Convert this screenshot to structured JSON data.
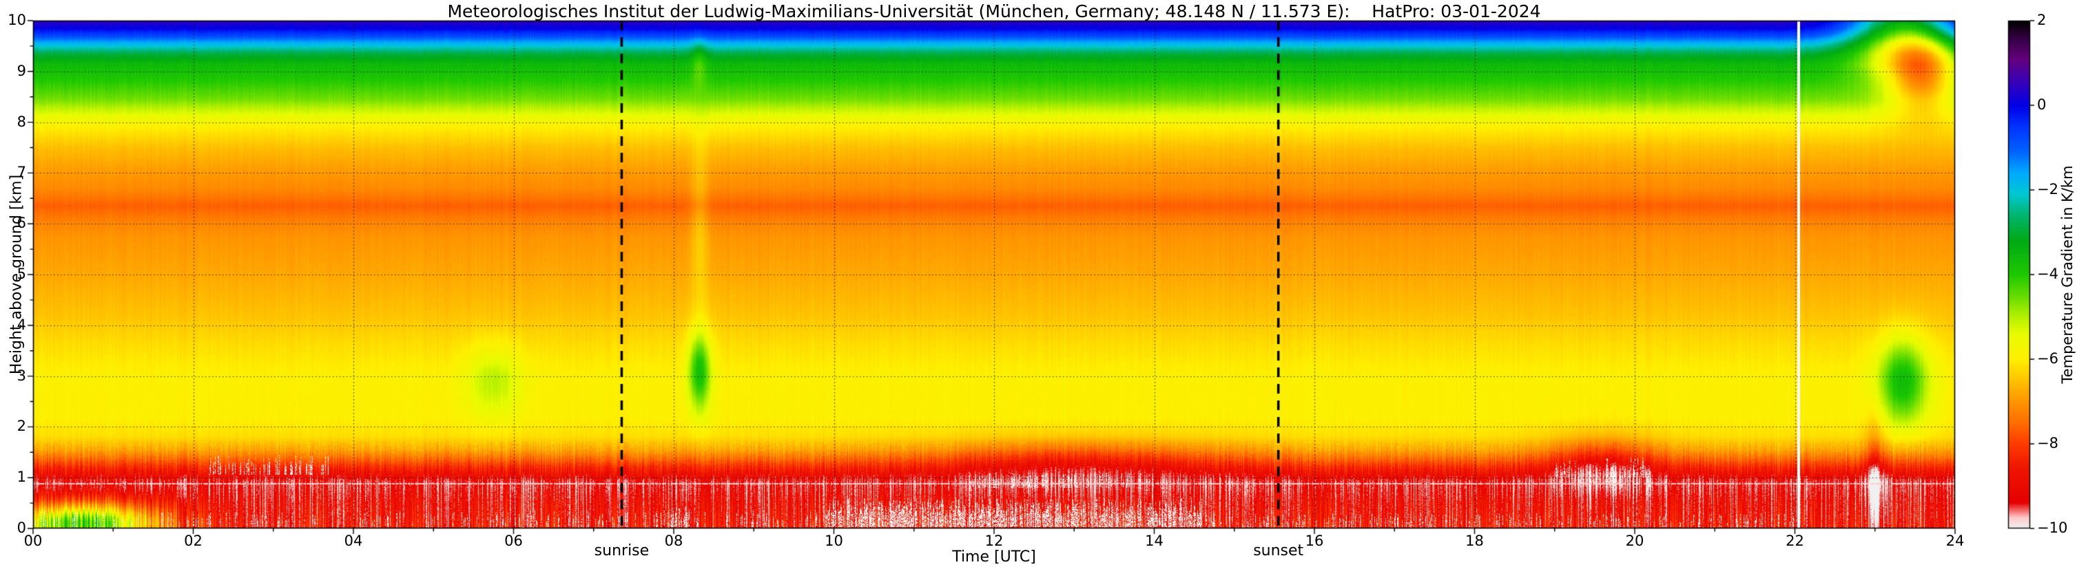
{
  "title": "Meteorologisches Institut der Ludwig-Maximilians-Universität (München, Germany; 48.148 N / 11.573 E):    HatPro: 03-01-2024",
  "axes": {
    "xlabel": "Time [UTC]",
    "ylabel": "Height above ground [km]",
    "x_ticks": [
      "00",
      "02",
      "04",
      "06",
      "08",
      "10",
      "12",
      "14",
      "16",
      "18",
      "20",
      "22",
      "24"
    ],
    "y_ticks": [
      "0",
      "1",
      "2",
      "3",
      "4",
      "5",
      "6",
      "7",
      "8",
      "9",
      "10"
    ],
    "xlim": [
      0,
      24
    ],
    "ylim": [
      0,
      10
    ],
    "grid": "dotted black, x every 2 h, y every 1 km"
  },
  "colorbar": {
    "label": "Temperature Gradient in K/km",
    "ticks": [
      "2",
      "0",
      "−2",
      "−4",
      "−6",
      "−8",
      "−10"
    ],
    "tick_values": [
      2,
      0,
      -2,
      -4,
      -6,
      -8,
      -10
    ],
    "range": [
      -10,
      2
    ],
    "stops": [
      [
        -10.0,
        "#f0f0f0"
      ],
      [
        -9.75,
        "#ffc8c8"
      ],
      [
        -9.4,
        "#e60000"
      ],
      [
        -8.6,
        "#ee1400"
      ],
      [
        -8.0,
        "#ff3c00"
      ],
      [
        -7.5,
        "#ff6e00"
      ],
      [
        -7.0,
        "#ff9600"
      ],
      [
        -6.5,
        "#ffc300"
      ],
      [
        -6.0,
        "#fff000"
      ],
      [
        -5.4,
        "#e8fc00"
      ],
      [
        -5.0,
        "#b4f000"
      ],
      [
        -4.5,
        "#64dc00"
      ],
      [
        -4.0,
        "#1ec800"
      ],
      [
        -3.2,
        "#00aa14"
      ],
      [
        -2.6,
        "#00b46e"
      ],
      [
        -2.1,
        "#00c8d2"
      ],
      [
        -1.6,
        "#00aaff"
      ],
      [
        -1.1,
        "#0064ff"
      ],
      [
        -0.5,
        "#0032ff"
      ],
      [
        0.0,
        "#0000e6"
      ],
      [
        0.6,
        "#3c00b4"
      ],
      [
        1.1,
        "#64007d"
      ],
      [
        1.6,
        "#320040"
      ],
      [
        2.0,
        "#000000"
      ]
    ]
  },
  "annotations": {
    "sunrise": {
      "label": "sunrise",
      "time": 7.35
    },
    "sunset": {
      "label": "sunset",
      "time": 15.55
    },
    "data_gap_time": 22.05
  },
  "chart_data": {
    "type": "heatmap",
    "title": "Temperature gradient (K/km) vs time (UTC) and height above ground (km), HatPro radiometer, 03-01-2024",
    "station": "München, Germany",
    "coordinates": "48.148 N / 11.573 E",
    "date_shown": "03-01-2024",
    "x_range_hours": [
      0,
      24
    ],
    "y_range_km": [
      0,
      10
    ],
    "value_units": "K/km",
    "base_profile": [
      [
        0.0,
        -8.7
      ],
      [
        0.25,
        -8.9
      ],
      [
        0.5,
        -9.0
      ],
      [
        0.75,
        -9.25
      ],
      [
        0.9,
        -9.35
      ],
      [
        1.05,
        -8.9
      ],
      [
        1.2,
        -8.3
      ],
      [
        1.35,
        -7.6
      ],
      [
        1.55,
        -6.8
      ],
      [
        1.8,
        -6.2
      ],
      [
        2.2,
        -5.95
      ],
      [
        3.0,
        -5.95
      ],
      [
        3.6,
        -6.2
      ],
      [
        4.2,
        -6.5
      ],
      [
        5.0,
        -6.8
      ],
      [
        5.7,
        -7.0
      ],
      [
        6.0,
        -7.2
      ],
      [
        6.35,
        -7.65
      ],
      [
        6.7,
        -7.15
      ],
      [
        7.1,
        -6.9
      ],
      [
        7.5,
        -6.55
      ],
      [
        7.9,
        -6.0
      ],
      [
        8.15,
        -5.4
      ],
      [
        8.45,
        -4.6
      ],
      [
        8.8,
        -4.05
      ],
      [
        9.15,
        -3.6
      ],
      [
        9.35,
        -2.9
      ],
      [
        9.55,
        -1.8
      ],
      [
        9.7,
        -0.8
      ],
      [
        9.85,
        0.0
      ],
      [
        10.0,
        0.45
      ]
    ],
    "features": [
      {
        "t": 8.32,
        "ts": 0.1,
        "h": 3.1,
        "hs": 0.55,
        "dv": 2.2,
        "note": "green plume above boundary layer after sunrise"
      },
      {
        "t": 8.32,
        "ts": 0.08,
        "h": 6.0,
        "hs": 1.2,
        "dv": 0.6,
        "note": "faint yellow streak aloft"
      },
      {
        "t": 8.32,
        "ts": 0.07,
        "h": 9.2,
        "hs": 0.35,
        "dv": -0.8,
        "note": "blue notch at top"
      },
      {
        "t": 23.35,
        "ts": 0.22,
        "h": 2.9,
        "hs": 0.6,
        "dv": 2.3,
        "note": "green column late evening"
      },
      {
        "t": 23.3,
        "ts": 0.45,
        "h": 9.85,
        "hs": 0.6,
        "dv": -3.4,
        "note": "green replacing blue at top right"
      },
      {
        "t": 23.6,
        "ts": 0.3,
        "h": 9.0,
        "hs": 0.55,
        "dv": -2.8,
        "note": "orange blob near 9 km at far right"
      },
      {
        "t": 23.0,
        "ts": 0.1,
        "h": 0.9,
        "hs": 0.9,
        "dv": -1.2,
        "note": "deep red low-level column"
      },
      {
        "t": 0.6,
        "ts": 0.7,
        "h": 0.1,
        "hs": 0.28,
        "dv": 4.6,
        "note": "green stable surface layer 00-02 UTC"
      },
      {
        "t": 5.75,
        "ts": 0.25,
        "h": 2.9,
        "hs": 0.5,
        "dv": 0.9,
        "note": "slight greenish tinge before sunrise"
      },
      {
        "t": 19.6,
        "ts": 0.5,
        "h": 1.35,
        "hs": 0.35,
        "dv": -1.2,
        "note": "red band thickening ~19-20 UTC"
      },
      {
        "t": 13.0,
        "ts": 1.2,
        "h": 1.35,
        "hs": 0.3,
        "dv": -0.9,
        "note": "midday red band intensification"
      }
    ],
    "white_patches": [
      {
        "t0": 9.9,
        "t1": 14.6,
        "h0": 0.02,
        "h1": 0.6,
        "density": 0.5
      },
      {
        "t0": 11.7,
        "t1": 13.7,
        "h0": 0.8,
        "h1": 1.1,
        "density": 0.3
      },
      {
        "t0": 2.2,
        "t1": 3.7,
        "h0": 1.05,
        "h1": 1.45,
        "density": 0.22
      },
      {
        "t0": 19.0,
        "t1": 20.2,
        "h0": 1.0,
        "h1": 1.4,
        "density": 0.2
      },
      {
        "t0": 7.95,
        "t1": 8.2,
        "h0": 0.02,
        "h1": 0.45,
        "density": 0.35
      },
      {
        "t0": 14.6,
        "t1": 22.0,
        "h0": 0.02,
        "h1": 0.3,
        "density": 0.12
      },
      {
        "t0": 0.0,
        "t1": 9.9,
        "h0": 0.02,
        "h1": 0.35,
        "density": 0.1
      }
    ],
    "surface_line_km": 0.88,
    "vertical_lines": {
      "sunrise_dashed": 7.35,
      "sunset_dashed": 15.55,
      "white_data_gap": 22.05
    }
  }
}
